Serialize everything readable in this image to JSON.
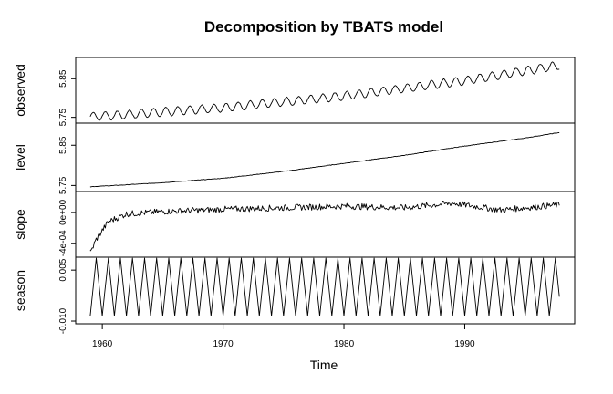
{
  "chart_data": {
    "type": "line",
    "title": "Decomposition by TBATS model",
    "xlabel": "Time",
    "xlim": [
      1957.8,
      1999.1
    ],
    "x_ticks": [
      {
        "value": 1960,
        "label": "1960"
      },
      {
        "value": 1970,
        "label": "1970"
      },
      {
        "value": 1980,
        "label": "1980"
      },
      {
        "value": 1990,
        "label": "1990"
      }
    ],
    "time": {
      "start": 1959.0,
      "end": 1997.9,
      "frequency": 12
    },
    "panels": [
      {
        "name": "observed",
        "ylim": [
          5.735,
          5.905
        ],
        "y_ticks": [
          {
            "value": 5.75,
            "label": "5.75"
          },
          {
            "value": 5.85,
            "label": "5.85"
          }
        ],
        "trend_anchors": [
          [
            1959.0,
            5.752
          ],
          [
            1961.0,
            5.755
          ],
          [
            1970.0,
            5.775
          ],
          [
            1980.0,
            5.805
          ],
          [
            1990.0,
            5.845
          ],
          [
            1997.9,
            5.885
          ]
        ],
        "seasonal_amplitude": 0.011
      },
      {
        "name": "level",
        "ylim": [
          5.735,
          5.905
        ],
        "y_ticks": [
          {
            "value": 5.75,
            "label": "5.75"
          },
          {
            "value": 5.85,
            "label": "5.85"
          }
        ],
        "trend_anchors": [
          [
            1959.0,
            5.747
          ],
          [
            1961.0,
            5.75
          ],
          [
            1965.0,
            5.757
          ],
          [
            1970.0,
            5.768
          ],
          [
            1975.0,
            5.785
          ],
          [
            1980.0,
            5.805
          ],
          [
            1985.0,
            5.825
          ],
          [
            1990.0,
            5.848
          ],
          [
            1995.0,
            5.868
          ],
          [
            1997.9,
            5.882
          ]
        ]
      },
      {
        "name": "slope",
        "ylim": [
          -0.00058,
          0.00027
        ],
        "y_ticks": [
          {
            "value": -0.0004,
            "label": "-4e-04"
          },
          {
            "value": 0,
            "label": "0e+00"
          }
        ],
        "trend_anchors": [
          [
            1959.0,
            -0.00053
          ],
          [
            1959.5,
            -0.00035
          ],
          [
            1960.5,
            -0.00012
          ],
          [
            1962.0,
            -2e-05
          ],
          [
            1965.0,
            1e-05
          ],
          [
            1970.0,
            4e-05
          ],
          [
            1975.0,
            6e-05
          ],
          [
            1980.0,
            8e-05
          ],
          [
            1985.0,
            6e-05
          ],
          [
            1989.0,
            0.00012
          ],
          [
            1993.0,
            3e-05
          ],
          [
            1997.9,
            0.0001
          ]
        ],
        "noise_amplitude": 4e-05
      },
      {
        "name": "season",
        "ylim": [
          -0.0108,
          0.0088
        ],
        "y_ticks": [
          {
            "value": -0.01,
            "label": "-0.010"
          },
          {
            "value": 0.005,
            "label": "0.005"
          }
        ],
        "period": 1,
        "amplitude": 0.0085
      }
    ]
  }
}
